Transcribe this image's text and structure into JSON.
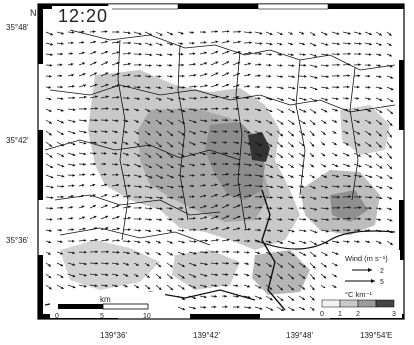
{
  "time_label": "12:20",
  "north_label": "N",
  "lat_ticks": [
    "35°48'",
    "35°42'",
    "35°36'"
  ],
  "lon_ticks": [
    "139°36'",
    "139°42'",
    "139°48'",
    "139°54'E"
  ],
  "scale_bar": {
    "title": "km",
    "ticks": [
      "0",
      "5",
      "10"
    ]
  },
  "wind_legend": {
    "title": "Wind (m s⁻¹)",
    "arrows": [
      "2",
      "5"
    ]
  },
  "color_legend": {
    "title": "°C km⁻¹",
    "ticks": [
      "0",
      "1",
      "2",
      "3"
    ]
  },
  "colors": {
    "background": "#ffffff",
    "frame": "#000000",
    "shade_light": "#c9c9c9",
    "shade_mid": "#9a9a9a",
    "shade_dark": "#555555"
  },
  "wind_vector_field": {
    "direction": "mostly toward the east-southeast",
    "arrow_color": "#111111"
  }
}
